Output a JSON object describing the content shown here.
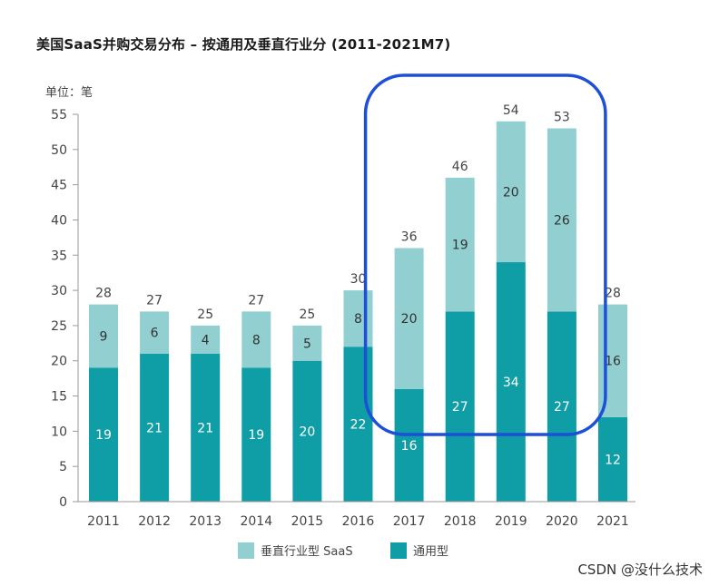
{
  "chart_data": {
    "type": "bar",
    "stacked": true,
    "title": "美国SaaS并购交易分布 – 按通用及垂直行业分 (2011-2021M7)",
    "unit_label": "单位：笔",
    "categories": [
      "2011",
      "2012",
      "2013",
      "2014",
      "2015",
      "2016",
      "2017",
      "2018",
      "2019",
      "2020",
      "2021"
    ],
    "series": [
      {
        "name": "通用型",
        "color": "#0f9ea6",
        "values": [
          19,
          21,
          21,
          19,
          20,
          22,
          16,
          27,
          34,
          27,
          12
        ]
      },
      {
        "name": "垂直行业型 SaaS",
        "color": "#92cfd0",
        "values": [
          9,
          6,
          4,
          8,
          5,
          8,
          20,
          19,
          20,
          26,
          16
        ]
      }
    ],
    "totals": [
      28,
      27,
      25,
      27,
      25,
      30,
      36,
      46,
      54,
      53,
      28
    ],
    "ylim": [
      0,
      55
    ],
    "yticks": [
      0,
      5,
      10,
      15,
      20,
      25,
      30,
      35,
      40,
      45,
      50,
      55
    ],
    "legend_position": "bottom",
    "highlight": {
      "categories": [
        "2017",
        "2018",
        "2019",
        "2020"
      ],
      "color": "#1d4fd8"
    }
  },
  "footer": {
    "credit": "CSDN @没什么技术"
  }
}
